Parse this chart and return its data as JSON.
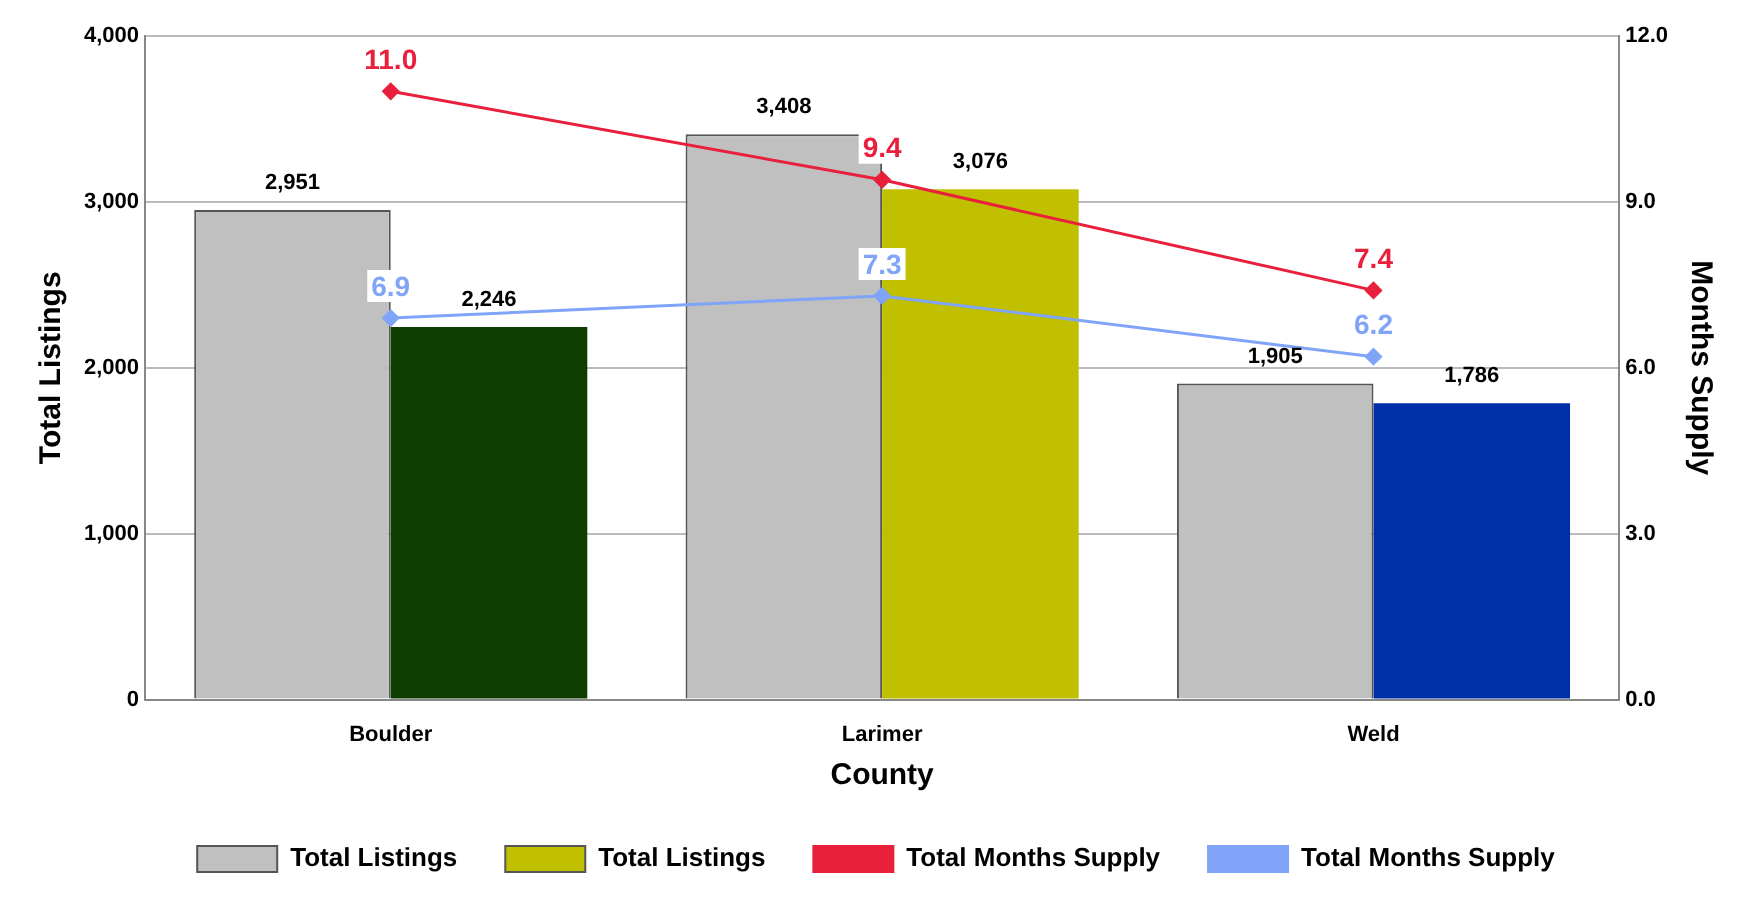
{
  "chart_data": {
    "type": "bar",
    "xlabel": "County",
    "ylabel": "Total Listings",
    "y2label": "Months Supply",
    "categories": [
      "Boulder",
      "Larimer",
      "Weld"
    ],
    "series": [
      {
        "name": "Total Listings",
        "color": "#c0c0c0",
        "values": [
          2951,
          3408,
          1905
        ],
        "value_labels": [
          "2,951",
          "3,408",
          "1,905"
        ]
      },
      {
        "name": "Total Listings",
        "color": "#c0c000",
        "colors": [
          "#0f3f00",
          "#c0c000",
          "#0030a8"
        ],
        "values": [
          2246,
          3076,
          1786
        ],
        "value_labels": [
          "2,246",
          "3,076",
          "1,786"
        ]
      },
      {
        "name": "Total Months Supply",
        "type": "line",
        "axis": "y2",
        "color": "#e8203c",
        "values": [
          11.0,
          9.4,
          7.4
        ],
        "value_labels": [
          "11.0",
          "9.4",
          "7.4"
        ]
      },
      {
        "name": "Total Months Supply",
        "type": "line",
        "axis": "y2",
        "color": "#7fa4f8",
        "values": [
          6.9,
          7.3,
          6.2
        ],
        "value_labels": [
          "6.9",
          "7.3",
          "6.2"
        ]
      }
    ],
    "ylim": [
      0,
      4000
    ],
    "yticks": [
      0,
      {
        "value": 1000,
        "label": "1,000"
      },
      {
        "value": 2000,
        "label": "2,000"
      },
      {
        "value": 3000,
        "label": "3,000"
      },
      {
        "value": 4000,
        "label": "4,000"
      }
    ],
    "y2lim": [
      0,
      12
    ],
    "y2ticks": [
      {
        "value": 0,
        "label": "0.0"
      },
      {
        "value": 3,
        "label": "3.0"
      },
      {
        "value": 6,
        "label": "6.0"
      },
      {
        "value": 9,
        "label": "9.0"
      },
      {
        "value": 12,
        "label": "12.0"
      }
    ],
    "grid": "y",
    "legend": "bottom",
    "marker": "diamond"
  }
}
